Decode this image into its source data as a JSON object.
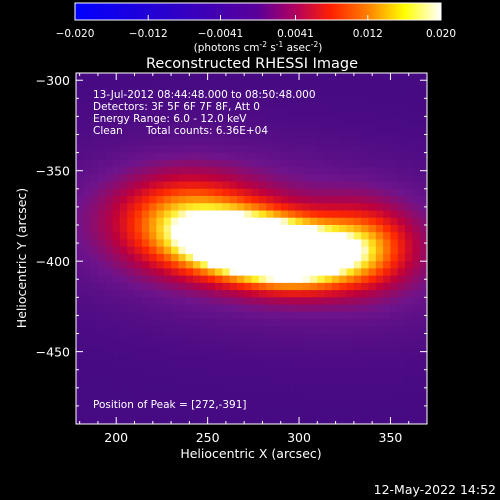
{
  "title": "Reconstructed RHESSI Image",
  "footer_timestamp": "12-May-2022 14:52",
  "colorbar": {
    "ticks": [
      "-0.020",
      "-0.012",
      "-0.0041",
      "0.0041",
      "0.012",
      "0.020"
    ],
    "tick_values": [
      -0.02,
      -0.012,
      -0.0041,
      0.0041,
      0.012,
      0.02
    ],
    "range": [
      -0.02,
      0.02
    ],
    "units_main": "(photons cm",
    "units_exp1": "-2",
    "units_mid1": " s",
    "units_exp2": "-1",
    "units_mid2": " asec",
    "units_exp3": "-2",
    "units_close": ")",
    "left_colors": [
      "#0000ff",
      "#2a00cc",
      "#5a0099"
    ],
    "right_colors": [
      "#5a0099",
      "#b00060",
      "#ff2000",
      "#ff8000",
      "#ffff00",
      "#ffffff"
    ]
  },
  "annotations": {
    "line1": "13-Jul-2012 08:44:48.000 to 08:50:48.000",
    "line2": "Detectors: 3F 5F 6F 7F 8F, Att 0",
    "line3": "Energy Range: 6.0 - 12.0 keV",
    "line4_a": "Clean",
    "line4_b": "Total counts: 6.36E+04",
    "peak": "Position of Peak = [272,-391]"
  },
  "chart_data": {
    "type": "heatmap",
    "title": "Reconstructed RHESSI Image",
    "xlabel": "Heliocentric X (arcsec)",
    "ylabel": "Heliocentric Y (arcsec)",
    "xlim": [
      178,
      370
    ],
    "ylim": [
      -490,
      -296
    ],
    "x_ticks": [
      200,
      250,
      300,
      350
    ],
    "y_ticks": [
      -300,
      -350,
      -400,
      -450
    ],
    "x_tick_labels": [
      "200",
      "250",
      "300",
      "350"
    ],
    "y_tick_labels": [
      "−300",
      "−350",
      "−400",
      "−450"
    ],
    "peak": [
      272,
      -391
    ],
    "sources": [
      {
        "x": 272,
        "y": -391,
        "amplitude": 1.0,
        "sigma_x": 24,
        "sigma_y": 12
      },
      {
        "x": 298,
        "y": -399,
        "amplitude": 0.9,
        "sigma_x": 22,
        "sigma_y": 12
      },
      {
        "x": 238,
        "y": -378,
        "amplitude": 0.65,
        "sigma_x": 28,
        "sigma_y": 18
      },
      {
        "x": 335,
        "y": -392,
        "amplitude": 0.55,
        "sigma_x": 20,
        "sigma_y": 16
      }
    ],
    "cell_arcsec": 4
  }
}
